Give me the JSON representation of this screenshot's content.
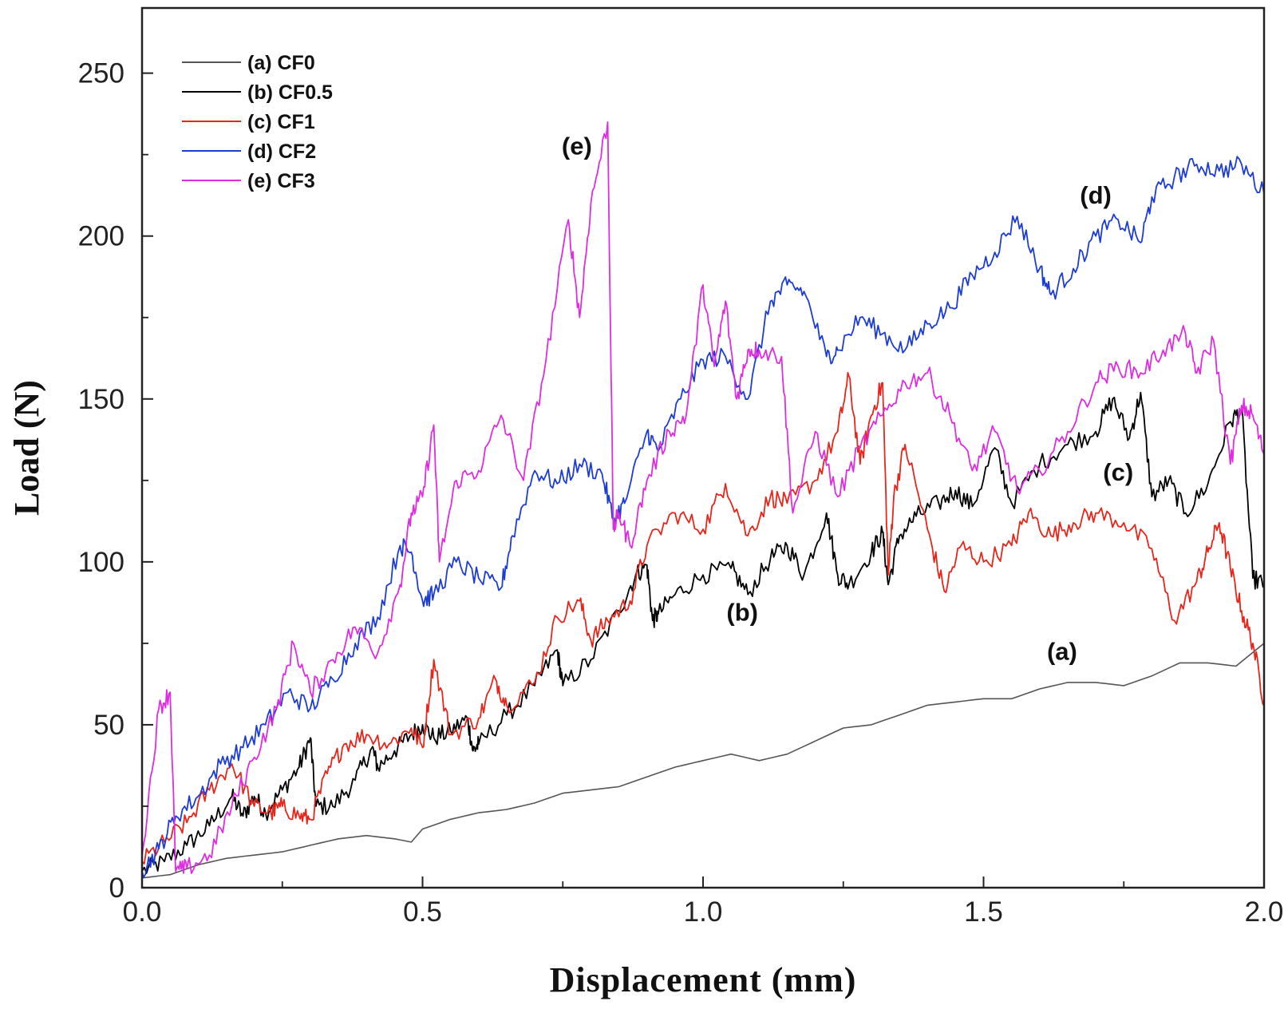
{
  "chart_data": {
    "type": "line",
    "xlabel": "Displacement (mm)",
    "ylabel": "Load (N)",
    "xlim": [
      0,
      2.0
    ],
    "ylim": [
      0,
      270
    ],
    "x_ticks": [
      0.0,
      0.5,
      1.0,
      1.5,
      2.0
    ],
    "x_tick_labels": [
      "0.0",
      "0.5",
      "1.0",
      "1.5",
      "2.0"
    ],
    "y_ticks": [
      0,
      50,
      100,
      150,
      200,
      250
    ],
    "y_tick_labels": [
      "0",
      "50",
      "100",
      "150",
      "200",
      "250"
    ],
    "grid": false,
    "legend_position": "top-left",
    "series": [
      {
        "name": "(a) CF0",
        "color": "#555555",
        "x": [
          0.0,
          0.05,
          0.1,
          0.15,
          0.2,
          0.25,
          0.3,
          0.35,
          0.4,
          0.45,
          0.48,
          0.5,
          0.55,
          0.6,
          0.65,
          0.7,
          0.75,
          0.8,
          0.85,
          0.9,
          0.95,
          1.0,
          1.05,
          1.1,
          1.15,
          1.2,
          1.25,
          1.3,
          1.35,
          1.4,
          1.45,
          1.5,
          1.55,
          1.6,
          1.65,
          1.7,
          1.75,
          1.8,
          1.85,
          1.9,
          1.95,
          2.0
        ],
        "y": [
          3,
          4,
          7,
          9,
          10,
          11,
          13,
          15,
          16,
          15,
          14,
          18,
          21,
          23,
          24,
          26,
          29,
          30,
          31,
          34,
          37,
          39,
          41,
          39,
          41,
          45,
          49,
          50,
          53,
          56,
          57,
          58,
          58,
          61,
          63,
          63,
          62,
          65,
          69,
          69,
          68,
          75
        ]
      },
      {
        "name": "(b) CF0.5",
        "color": "#000000",
        "x": [
          0.0,
          0.04,
          0.08,
          0.12,
          0.16,
          0.18,
          0.2,
          0.22,
          0.25,
          0.28,
          0.3,
          0.31,
          0.34,
          0.38,
          0.41,
          0.42,
          0.45,
          0.48,
          0.5,
          0.52,
          0.55,
          0.58,
          0.59,
          0.6,
          0.65,
          0.7,
          0.74,
          0.75,
          0.8,
          0.85,
          0.88,
          0.9,
          0.91,
          0.92,
          0.95,
          1.0,
          1.05,
          1.08,
          1.12,
          1.15,
          1.18,
          1.22,
          1.24,
          1.26,
          1.3,
          1.32,
          1.33,
          1.35,
          1.38,
          1.42,
          1.45,
          1.48,
          1.52,
          1.55,
          1.6,
          1.65,
          1.7,
          1.73,
          1.76,
          1.78,
          1.8,
          1.83,
          1.86,
          1.9,
          1.94,
          1.96,
          1.98,
          2.0
        ],
        "y": [
          5,
          8,
          13,
          19,
          28,
          22,
          28,
          23,
          30,
          37,
          46,
          25,
          25,
          33,
          43,
          37,
          42,
          47,
          50,
          46,
          48,
          52,
          42,
          44,
          53,
          62,
          73,
          62,
          70,
          85,
          96,
          99,
          82,
          84,
          90,
          96,
          98,
          90,
          101,
          105,
          96,
          115,
          96,
          93,
          103,
          109,
          93,
          108,
          114,
          118,
          122,
          117,
          135,
          118,
          130,
          136,
          140,
          150,
          138,
          152,
          120,
          125,
          115,
          124,
          143,
          147,
          95,
          93
        ]
      },
      {
        "name": "(c) CF1",
        "color": "#e8251a",
        "x": [
          0.0,
          0.04,
          0.08,
          0.12,
          0.16,
          0.2,
          0.23,
          0.25,
          0.28,
          0.3,
          0.33,
          0.36,
          0.4,
          0.44,
          0.48,
          0.5,
          0.52,
          0.55,
          0.6,
          0.63,
          0.65,
          0.7,
          0.74,
          0.78,
          0.8,
          0.83,
          0.87,
          0.9,
          0.95,
          1.0,
          1.04,
          1.08,
          1.12,
          1.15,
          1.2,
          1.24,
          1.26,
          1.28,
          1.3,
          1.32,
          1.33,
          1.34,
          1.36,
          1.4,
          1.43,
          1.46,
          1.5,
          1.55,
          1.58,
          1.62,
          1.66,
          1.7,
          1.75,
          1.8,
          1.84,
          1.88,
          1.9,
          1.92,
          1.94,
          1.96,
          1.98,
          2.0
        ],
        "y": [
          8,
          14,
          20,
          30,
          38,
          25,
          23,
          25,
          22,
          21,
          35,
          44,
          47,
          44,
          49,
          43,
          70,
          47,
          52,
          64,
          56,
          63,
          83,
          88,
          76,
          82,
          88,
          105,
          115,
          110,
          124,
          108,
          120,
          118,
          125,
          140,
          157,
          130,
          145,
          155,
          96,
          120,
          136,
          110,
          91,
          105,
          100,
          105,
          115,
          108,
          112,
          115,
          112,
          104,
          82,
          94,
          103,
          112,
          98,
          85,
          75,
          57
        ]
      },
      {
        "name": "(d) CF2",
        "color": "#1c3cd8",
        "x": [
          0.0,
          0.03,
          0.06,
          0.1,
          0.14,
          0.18,
          0.22,
          0.26,
          0.3,
          0.34,
          0.38,
          0.42,
          0.46,
          0.48,
          0.5,
          0.52,
          0.56,
          0.6,
          0.64,
          0.66,
          0.7,
          0.74,
          0.78,
          0.82,
          0.84,
          0.86,
          0.9,
          0.92,
          0.96,
          1.0,
          1.04,
          1.08,
          1.12,
          1.15,
          1.18,
          1.22,
          1.24,
          1.28,
          1.32,
          1.36,
          1.4,
          1.44,
          1.48,
          1.52,
          1.56,
          1.6,
          1.62,
          1.66,
          1.7,
          1.74,
          1.78,
          1.8,
          1.84,
          1.88,
          1.92,
          1.96,
          2.0
        ],
        "y": [
          5,
          12,
          22,
          28,
          38,
          43,
          50,
          60,
          55,
          64,
          75,
          83,
          105,
          103,
          88,
          90,
          100,
          95,
          92,
          108,
          128,
          124,
          130,
          127,
          113,
          118,
          140,
          134,
          150,
          162,
          163,
          150,
          180,
          185,
          183,
          163,
          165,
          175,
          170,
          165,
          173,
          178,
          188,
          195,
          206,
          190,
          182,
          190,
          200,
          205,
          198,
          212,
          218,
          222,
          220,
          222,
          213
        ]
      },
      {
        "name": "(e) CF3",
        "color": "#e02ce0",
        "x": [
          0.0,
          0.03,
          0.05,
          0.06,
          0.08,
          0.12,
          0.16,
          0.2,
          0.24,
          0.27,
          0.3,
          0.34,
          0.38,
          0.42,
          0.46,
          0.48,
          0.5,
          0.52,
          0.53,
          0.56,
          0.6,
          0.64,
          0.68,
          0.72,
          0.76,
          0.78,
          0.8,
          0.83,
          0.84,
          0.85,
          0.87,
          0.9,
          0.94,
          0.97,
          1.0,
          1.02,
          1.04,
          1.06,
          1.08,
          1.1,
          1.14,
          1.16,
          1.2,
          1.24,
          1.28,
          1.32,
          1.36,
          1.4,
          1.44,
          1.48,
          1.52,
          1.56,
          1.6,
          1.65,
          1.7,
          1.74,
          1.78,
          1.82,
          1.86,
          1.88,
          1.91,
          1.94,
          1.96,
          1.98,
          2.0
        ],
        "y": [
          10,
          55,
          60,
          5,
          6,
          10,
          25,
          40,
          55,
          75,
          60,
          70,
          80,
          72,
          93,
          115,
          120,
          142,
          100,
          125,
          128,
          145,
          125,
          162,
          205,
          175,
          210,
          235,
          110,
          115,
          105,
          125,
          140,
          145,
          185,
          160,
          180,
          150,
          165,
          165,
          163,
          115,
          140,
          120,
          135,
          145,
          155,
          158,
          145,
          128,
          140,
          122,
          128,
          140,
          155,
          160,
          158,
          165,
          170,
          158,
          168,
          130,
          148,
          145,
          133
        ]
      }
    ],
    "annotations": [
      {
        "text": "(e)",
        "x": 0.775,
        "y": 225
      },
      {
        "text": "(d)",
        "x": 1.7,
        "y": 210
      },
      {
        "text": "(c)",
        "x": 1.74,
        "y": 125
      },
      {
        "text": "(b)",
        "x": 1.07,
        "y": 82
      },
      {
        "text": "(a)",
        "x": 1.64,
        "y": 70
      }
    ]
  }
}
